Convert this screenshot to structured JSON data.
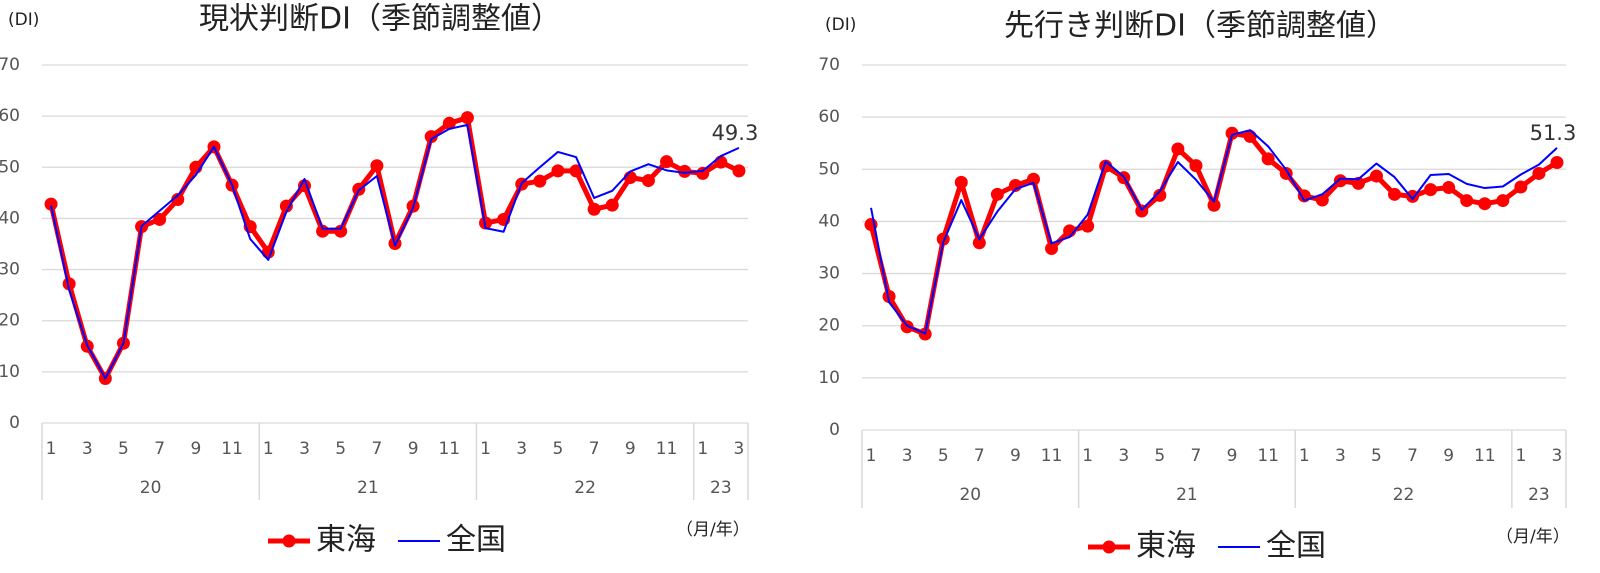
{
  "chart_data": [
    {
      "type": "line",
      "title": "現状判断DI（季節調整値）",
      "y_unit": "(DI)",
      "x_unit": "（月/年）",
      "categories": [
        "1",
        null,
        "3",
        null,
        "5",
        null,
        "7",
        null,
        "9",
        null,
        "11",
        null,
        "1",
        null,
        "3",
        null,
        "5",
        null,
        "7",
        null,
        "9",
        null,
        "11",
        null,
        "1",
        null,
        "3",
        null,
        "5",
        null,
        "7",
        null,
        "9",
        null,
        "11",
        null,
        "1",
        null,
        "3"
      ],
      "groups": [
        "20",
        "21",
        "22",
        "23"
      ],
      "series": [
        {
          "name": "東海",
          "color": "#ff0000",
          "marker": true,
          "values": [
            42.8,
            27.2,
            15,
            8.7,
            15.6,
            38.4,
            39.8,
            43.7,
            50,
            54,
            46.5,
            38.4,
            33.4,
            42.4,
            46.4,
            37.5,
            37.5,
            45.7,
            50.3,
            35.1,
            42.4,
            56,
            58.6,
            59.7,
            39.1,
            39.8,
            46.7,
            47.3,
            49.3,
            49.3,
            41.8,
            42.6,
            48,
            47.4,
            51.1,
            49.2,
            48.8,
            51,
            49.3
          ]
        },
        {
          "name": "全国",
          "color": "#0000ff",
          "marker": false,
          "values": [
            42.5,
            26,
            15.2,
            8.7,
            15.6,
            38.5,
            41.5,
            44.5,
            48.5,
            54,
            46.5,
            36,
            31.9,
            41.3,
            47.7,
            38,
            38,
            45.5,
            48.3,
            34.7,
            42.1,
            55.5,
            57.5,
            58.3,
            38.1,
            37.4,
            46.9,
            50,
            53,
            52,
            44,
            45.4,
            49.2,
            50.6,
            49.4,
            48.9,
            49.3,
            52.2,
            53.8
          ]
        }
      ],
      "ylim": [
        0,
        70
      ],
      "yticks": [
        0,
        10,
        20,
        30,
        40,
        50,
        60,
        70
      ],
      "grid": true
    },
    {
      "type": "line",
      "title": "先行き判断DI（季節調整値）",
      "y_unit": "(DI)",
      "x_unit": "（月/年）",
      "categories": [
        "1",
        null,
        "3",
        null,
        "5",
        null,
        "7",
        null,
        "9",
        null,
        "11",
        null,
        "1",
        null,
        "3",
        null,
        "5",
        null,
        "7",
        null,
        "9",
        null,
        "11",
        null,
        "1",
        null,
        "3",
        null,
        "5",
        null,
        "7",
        null,
        "9",
        null,
        "11",
        null,
        "1",
        null,
        "3"
      ],
      "groups": [
        "20",
        "21",
        "22",
        "23"
      ],
      "series": [
        {
          "name": "東海",
          "color": "#ff0000",
          "marker": true,
          "values": [
            39.4,
            25.6,
            19.8,
            18.4,
            36.6,
            47.5,
            35.9,
            45.2,
            46.9,
            48.1,
            34.8,
            38.2,
            39.1,
            50.6,
            48.4,
            42,
            45,
            53.9,
            50.7,
            43.1,
            56.9,
            56.3,
            52,
            49.2,
            44.9,
            44.1,
            47.8,
            47.3,
            48.7,
            45.2,
            44.8,
            46.1,
            46.5,
            44,
            43.4,
            44,
            46.6,
            49.2,
            51.3
          ]
        },
        {
          "name": "全国",
          "color": "#0000ff",
          "marker": false,
          "values": [
            42.6,
            24.5,
            20,
            18.5,
            36,
            44.1,
            36.6,
            41.9,
            46.2,
            47.4,
            35.8,
            37,
            41.3,
            51.5,
            48.6,
            42.2,
            45.8,
            51.4,
            48,
            43.8,
            56.6,
            57.5,
            54.4,
            49.9,
            44,
            45.2,
            48.2,
            48.1,
            51.1,
            48.5,
            44.3,
            48.9,
            49.1,
            47.2,
            46.4,
            46.7,
            49,
            50.9,
            54.1
          ]
        }
      ],
      "ylim": [
        0,
        70
      ],
      "yticks": [
        0,
        10,
        20,
        30,
        40,
        50,
        60,
        70
      ],
      "grid": true
    }
  ]
}
